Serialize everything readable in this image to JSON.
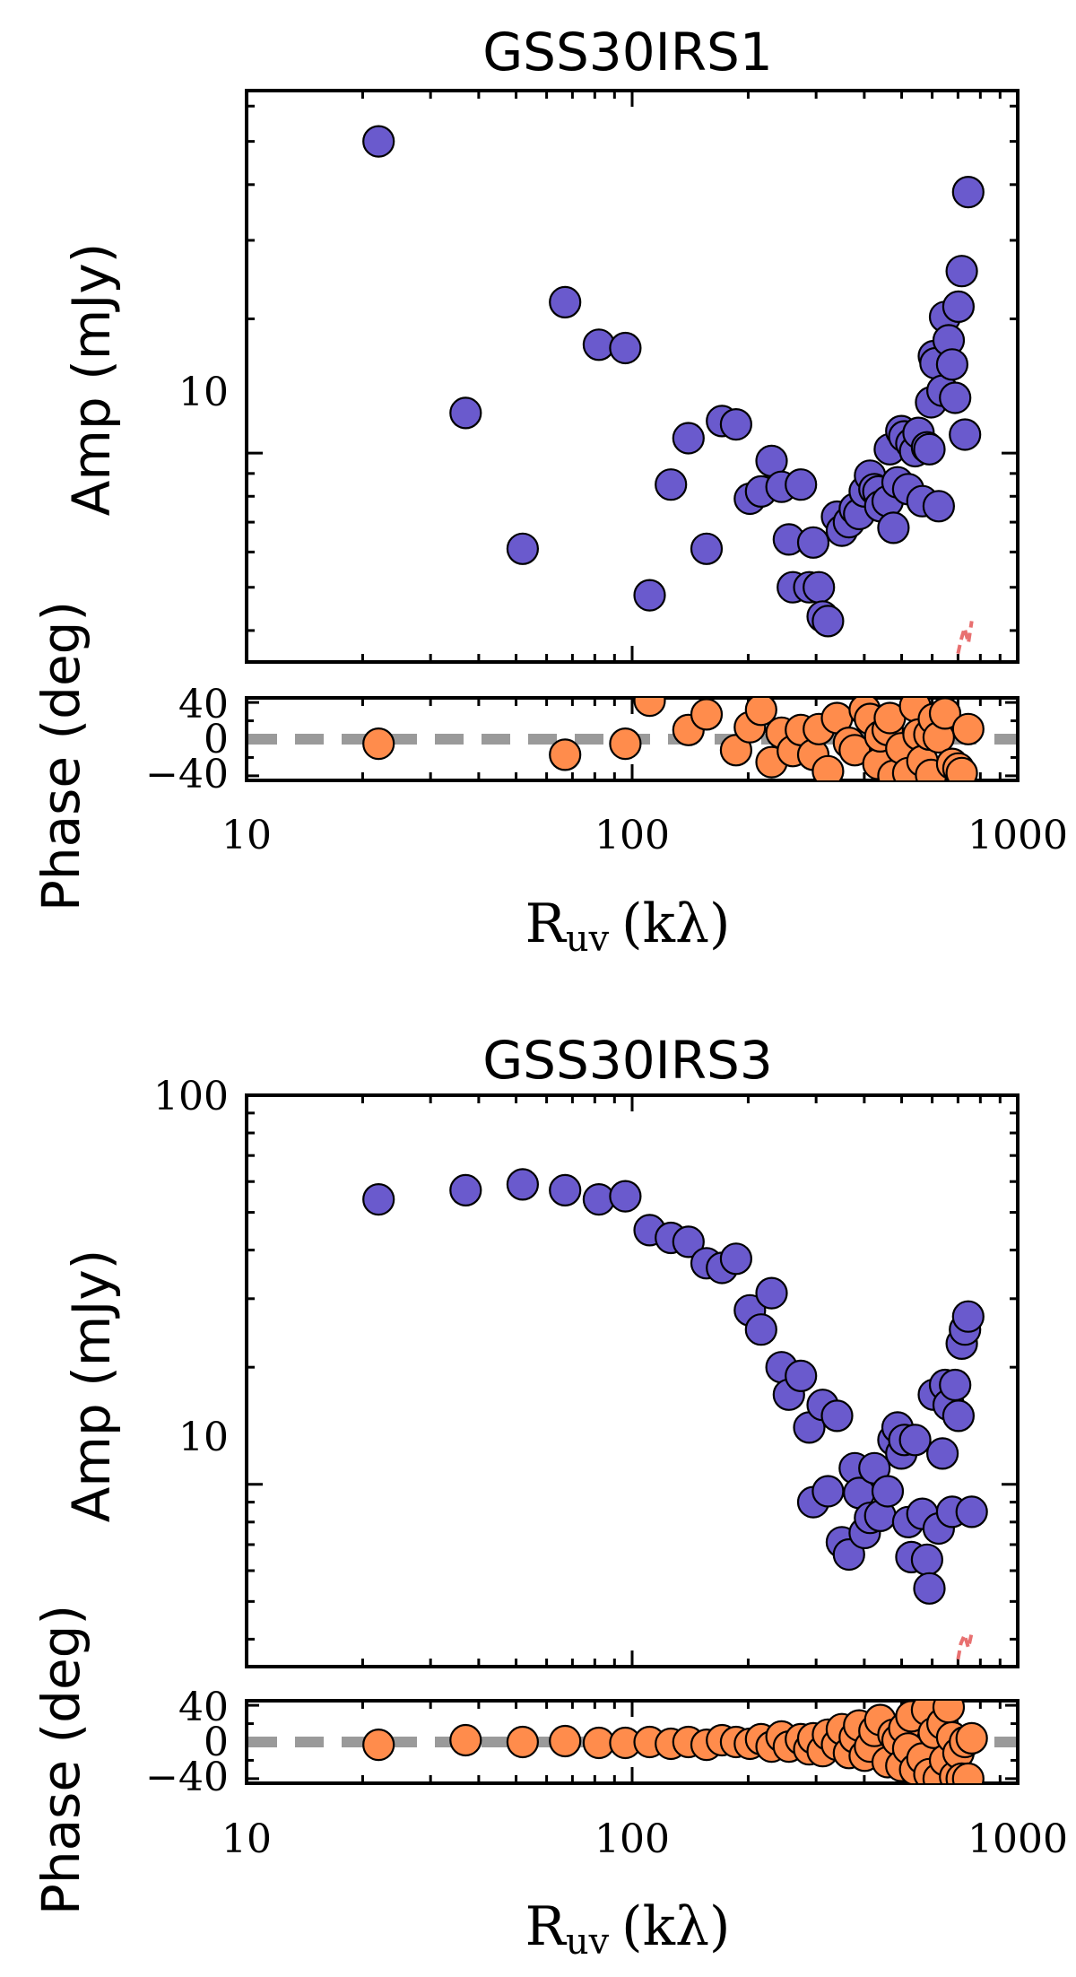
{
  "colors": {
    "amplitude_marker": "#6a5acd",
    "phase_marker": "#ff8c4c",
    "zero_line": "#9a9a9a",
    "model_line": "#e87070"
  },
  "chart_data": [
    {
      "type": "scatter",
      "title": "GSS30IRS1",
      "xlabel_main": "R",
      "xlabel_sub": "uv",
      "xlabel_unit": "(kλ)",
      "xscale": "log",
      "xlim": [
        10,
        1000
      ],
      "x_ticks": [
        "10",
        "100",
        "1000"
      ],
      "amp": {
        "ylabel": "Amp (mJy)",
        "yscale": "log",
        "ylim": [
          3.4,
          65
        ],
        "y_ticks": [
          "10"
        ],
        "series_name": "amplitude",
        "x": [
          22,
          37,
          52,
          67,
          82,
          96,
          111,
          126,
          140,
          156,
          171,
          186,
          202,
          216,
          230,
          244,
          255,
          261,
          274,
          288,
          295,
          305,
          312,
          322,
          340,
          350,
          365,
          378,
          388,
          401,
          414,
          425,
          435,
          440,
          460,
          466,
          476,
          488,
          499,
          508,
          520,
          530,
          542,
          553,
          566,
          582,
          590,
          596,
          606,
          612,
          624,
          638,
          648,
          662,
          676,
          688,
          702,
          716,
          730,
          744
        ],
        "y": [
          50,
          12.3,
          6.1,
          21.8,
          17.5,
          17.2,
          4.8,
          8.5,
          10.8,
          6.1,
          11.8,
          11.6,
          7.9,
          8.2,
          9.6,
          8.4,
          6.4,
          5.0,
          8.5,
          5.0,
          6.3,
          5.0,
          4.3,
          4.2,
          7.2,
          6.7,
          7.0,
          7.5,
          7.3,
          8.2,
          8.9,
          8.3,
          8.2,
          7.6,
          7.8,
          10.2,
          6.8,
          8.6,
          11.2,
          10.9,
          8.3,
          10.5,
          10.1,
          11.1,
          7.8,
          10.3,
          10.2,
          13.0,
          16.5,
          15.9,
          7.6,
          13.8,
          20.2,
          17.9,
          15.8,
          13.3,
          21.3,
          25.6,
          11.0,
          38.5
        ],
        "model_line": {
          "x": [
            700,
            712,
            728,
            745,
            760
          ],
          "y": [
            3.55,
            3.8,
            4.05,
            3.75,
            4.2
          ]
        }
      },
      "phase": {
        "ylabel": "Phase (deg)",
        "ylim": [
          -45,
          45
        ],
        "y_ticks": [
          "40",
          "0",
          "−40"
        ],
        "series_name": "phase",
        "x": [
          22,
          67,
          96,
          111,
          140,
          156,
          186,
          202,
          216,
          230,
          244,
          261,
          274,
          295,
          305,
          322,
          340,
          365,
          378,
          401,
          414,
          435,
          440,
          460,
          466,
          476,
          499,
          520,
          542,
          553,
          566,
          590,
          596,
          606,
          624,
          648,
          676,
          702,
          716,
          744
        ],
        "y": [
          -5,
          -17,
          -5,
          42,
          10,
          27,
          -12,
          13,
          32,
          -25,
          7,
          -13,
          10,
          -17,
          11,
          -35,
          23,
          -4,
          -12,
          32,
          22,
          -27,
          3,
          10,
          23,
          -40,
          -10,
          -37,
          36,
          5,
          -24,
          5,
          -39,
          22,
          2,
          28,
          -27,
          -32,
          -37,
          11
        ]
      }
    },
    {
      "type": "scatter",
      "title": "GSS30IRS3",
      "xlabel_main": "R",
      "xlabel_sub": "uv",
      "xlabel_unit": "(kλ)",
      "xscale": "log",
      "xlim": [
        10,
        1000
      ],
      "x_ticks": [
        "10",
        "100",
        "1000"
      ],
      "amp": {
        "ylabel": "Amp (mJy)",
        "yscale": "log",
        "ylim": [
          3.4,
          100
        ],
        "y_ticks": [
          "100",
          "10"
        ],
        "series_name": "amplitude",
        "x": [
          22,
          37,
          52,
          67,
          82,
          96,
          111,
          126,
          140,
          156,
          171,
          186,
          202,
          216,
          230,
          244,
          255,
          274,
          288,
          295,
          312,
          322,
          340,
          350,
          365,
          378,
          388,
          401,
          414,
          425,
          440,
          460,
          476,
          488,
          499,
          508,
          520,
          530,
          542,
          566,
          582,
          590,
          606,
          624,
          638,
          648,
          662,
          676,
          688,
          702,
          716,
          730,
          744,
          760
        ],
        "y": [
          54,
          57,
          59,
          57,
          54,
          55,
          45,
          43,
          42,
          37,
          36,
          38,
          28,
          25,
          31,
          20,
          17,
          19,
          14,
          9.0,
          16,
          9.6,
          15,
          7.1,
          6.6,
          11,
          9.5,
          7.5,
          8.2,
          11,
          8.3,
          9.6,
          13,
          14,
          12,
          13,
          8.0,
          6.5,
          13,
          8.4,
          6.4,
          5.4,
          17,
          7.7,
          12,
          18,
          16,
          8.5,
          18,
          15,
          23,
          25,
          27,
          8.5
        ],
        "model_line": {
          "x": [
            700,
            712,
            728,
            745,
            760
          ],
          "y": [
            3.55,
            3.9,
            4.1,
            3.8,
            4.15
          ]
        }
      },
      "phase": {
        "ylabel": "Phase (deg)",
        "ylim": [
          -45,
          45
        ],
        "y_ticks": [
          "40",
          "0",
          "−40"
        ],
        "series_name": "phase",
        "x": [
          22,
          37,
          52,
          67,
          82,
          96,
          111,
          126,
          140,
          156,
          171,
          186,
          202,
          216,
          230,
          244,
          255,
          274,
          288,
          295,
          312,
          322,
          340,
          350,
          365,
          378,
          388,
          401,
          414,
          425,
          440,
          460,
          476,
          488,
          499,
          508,
          520,
          530,
          542,
          566,
          582,
          590,
          606,
          624,
          638,
          648,
          662,
          676,
          688,
          702,
          716,
          730,
          744,
          760
        ],
        "y": [
          -3,
          2,
          0,
          1,
          -1,
          -1,
          0,
          -2,
          0,
          -3,
          2,
          0,
          -2,
          3,
          -5,
          6,
          -5,
          3,
          -8,
          4,
          -10,
          8,
          -3,
          14,
          -12,
          5,
          18,
          -15,
          -5,
          12,
          24,
          -22,
          8,
          2,
          -26,
          15,
          -7,
          28,
          -30,
          -18,
          35,
          -35,
          10,
          -40,
          20,
          -20,
          38,
          5,
          -38,
          -12,
          -40,
          0,
          -40,
          4
        ]
      }
    }
  ]
}
